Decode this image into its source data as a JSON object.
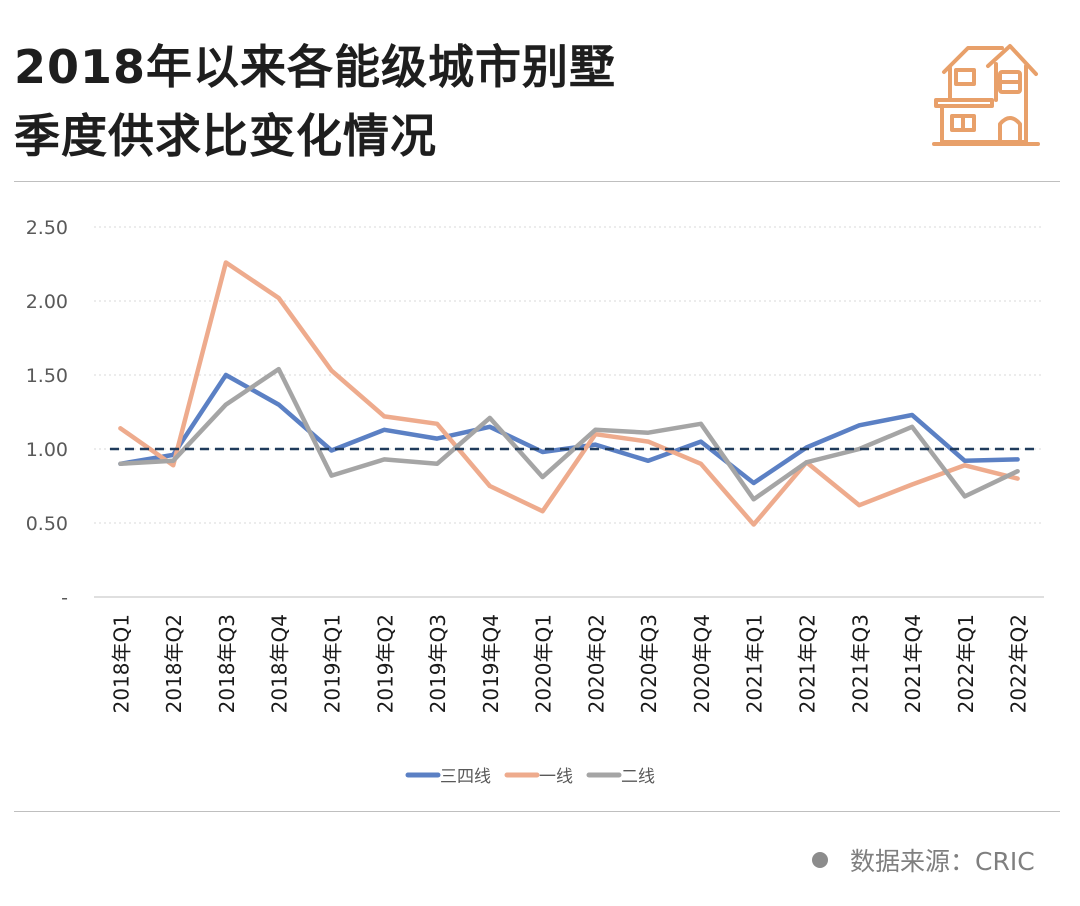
{
  "header": {
    "title_line1": "2018年以来各能级城市别墅",
    "title_line2": "季度供求比变化情况"
  },
  "icons": {
    "logo": "house-icon"
  },
  "colors": {
    "accent": "#e8a06a",
    "ref_line": "#1f3b5c",
    "grid": "#d9d9d9"
  },
  "chart_data": {
    "type": "line",
    "categories": [
      "2018年Q1",
      "2018年Q2",
      "2018年Q3",
      "2018年Q4",
      "2019年Q1",
      "2019年Q2",
      "2019年Q3",
      "2019年Q4",
      "2020年Q1",
      "2020年Q2",
      "2020年Q3",
      "2020年Q4",
      "2021年Q1",
      "2021年Q2",
      "2021年Q3",
      "2021年Q4",
      "2022年Q1",
      "2022年Q2"
    ],
    "y_ticks": [
      {
        "value": 0,
        "label": "-"
      },
      {
        "value": 0.5,
        "label": "0.50"
      },
      {
        "value": 1.0,
        "label": "1.00"
      },
      {
        "value": 1.5,
        "label": "1.50"
      },
      {
        "value": 2.0,
        "label": "2.00"
      },
      {
        "value": 2.5,
        "label": "2.50"
      }
    ],
    "ylim": [
      0,
      2.5
    ],
    "reference_line": 1.0,
    "grid": true,
    "legend_position": "bottom",
    "series": [
      {
        "name": "三四线",
        "color": "#5b80c4",
        "values": [
          0.9,
          0.96,
          1.5,
          1.3,
          0.99,
          1.13,
          1.07,
          1.15,
          0.98,
          1.03,
          0.92,
          1.05,
          0.77,
          1.01,
          1.16,
          1.23,
          0.92,
          0.93
        ]
      },
      {
        "name": "一线",
        "color": "#eeab8d",
        "values": [
          1.14,
          0.89,
          2.26,
          2.02,
          1.53,
          1.22,
          1.17,
          0.75,
          0.58,
          1.1,
          1.05,
          0.9,
          0.49,
          0.91,
          0.62,
          0.76,
          0.89,
          0.8
        ]
      },
      {
        "name": "二线",
        "color": "#a5a5a5",
        "values": [
          0.9,
          0.92,
          1.3,
          1.54,
          0.82,
          0.93,
          0.9,
          1.21,
          0.81,
          1.13,
          1.11,
          1.17,
          0.66,
          0.91,
          1.0,
          1.15,
          0.68,
          0.85
        ]
      }
    ]
  },
  "footer": {
    "source": "数据来源：CRIC"
  }
}
